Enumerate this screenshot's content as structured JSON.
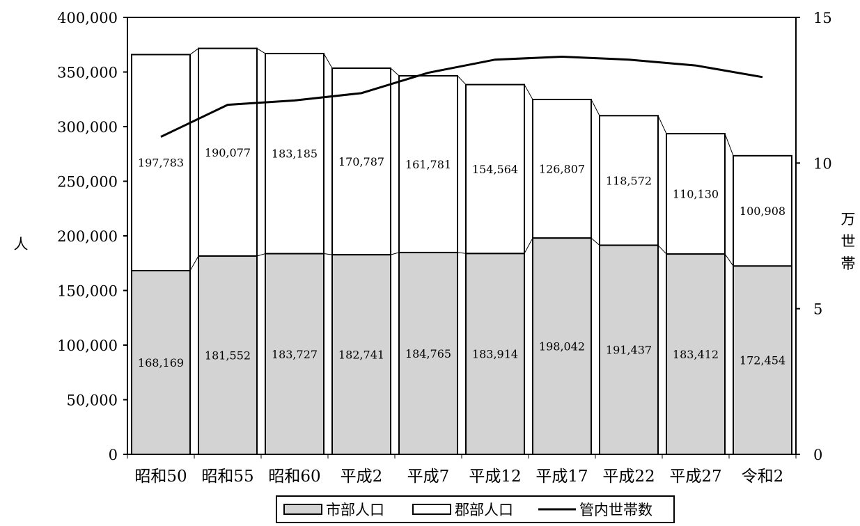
{
  "chart_data": {
    "type": "bar",
    "stacked": true,
    "categories": [
      "昭和50",
      "昭和55",
      "昭和60",
      "平成2",
      "平成7",
      "平成12",
      "平成17",
      "平成22",
      "平成27",
      "令和2"
    ],
    "series": [
      {
        "name": "市部人口",
        "kind": "bar",
        "axis": "left",
        "color": "#d3d3d3",
        "values": [
          168169,
          181552,
          183727,
          182741,
          184765,
          183914,
          198042,
          191437,
          183412,
          172454
        ],
        "labels": [
          "168,169",
          "181,552",
          "183,727",
          "182,741",
          "184,765",
          "183,914",
          "198,042",
          "191,437",
          "183,412",
          "172,454"
        ]
      },
      {
        "name": "郡部人口",
        "kind": "bar",
        "axis": "left",
        "color": "#ffffff",
        "values": [
          197783,
          190077,
          183185,
          170787,
          161781,
          154564,
          126807,
          118572,
          110130,
          100908
        ],
        "labels": [
          "197,783",
          "190,077",
          "183,185",
          "170,787",
          "161,781",
          "154,564",
          "126,807",
          "118,572",
          "110,130",
          "100,908"
        ]
      },
      {
        "name": "管内世帯数",
        "kind": "line",
        "axis": "right",
        "color": "#000000",
        "values": [
          10.9,
          12.0,
          12.15,
          12.4,
          13.1,
          13.55,
          13.65,
          13.55,
          13.35,
          12.95
        ]
      }
    ],
    "y_left": {
      "label": "人",
      "lim": [
        0,
        400000
      ],
      "ticks": [
        0,
        50000,
        100000,
        150000,
        200000,
        250000,
        300000,
        350000,
        400000
      ],
      "tick_labels": [
        "0",
        "50,000",
        "100,000",
        "150,000",
        "200,000",
        "250,000",
        "300,000",
        "350,000",
        "400,000"
      ]
    },
    "y_right": {
      "label": "万世帯",
      "lim": [
        0,
        15
      ],
      "ticks": [
        0,
        5,
        10,
        15
      ],
      "tick_labels": [
        "0",
        "5",
        "10",
        "15"
      ]
    },
    "grid": false,
    "legend_position": "bottom-center"
  }
}
